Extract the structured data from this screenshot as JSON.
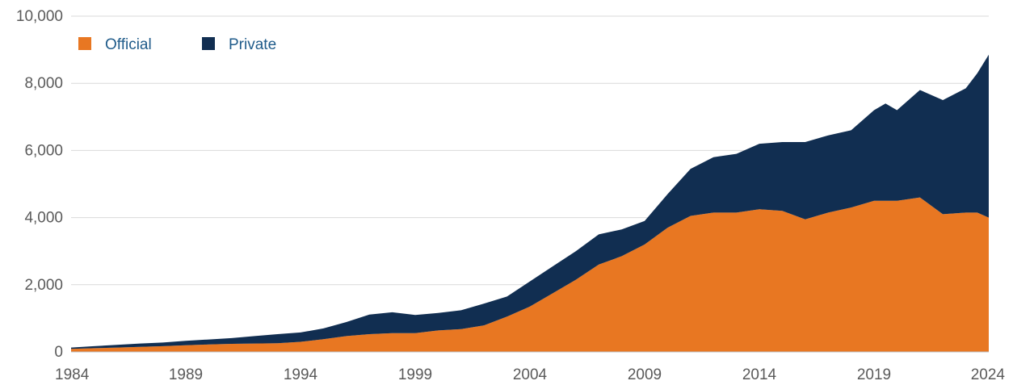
{
  "chart_data": {
    "type": "area",
    "stacked": true,
    "title": "",
    "xlabel": "",
    "ylabel": "",
    "xlim": [
      1984,
      2024
    ],
    "ylim": [
      0,
      10000
    ],
    "grid": "horizontal",
    "legend_position": "top-left",
    "x_ticks": [
      "1984",
      "1989",
      "1994",
      "1999",
      "2004",
      "2009",
      "2014",
      "2019",
      "2024"
    ],
    "y_ticks": [
      "0",
      "2,000",
      "4,000",
      "6,000",
      "8,000",
      "10,000"
    ],
    "x": [
      1984,
      1985,
      1986,
      1987,
      1988,
      1989,
      1990,
      1991,
      1992,
      1993,
      1994,
      1995,
      1996,
      1997,
      1998,
      1999,
      2000,
      2001,
      2002,
      2003,
      2004,
      2005,
      2006,
      2007,
      2008,
      2009,
      2010,
      2011,
      2012,
      2013,
      2014,
      2015,
      2016,
      2017,
      2018,
      2019,
      2019.5,
      2020,
      2021,
      2022,
      2023,
      2023.5,
      2024
    ],
    "series": [
      {
        "name": "Official",
        "color": "#e87722",
        "values": [
          90,
          110,
          130,
          150,
          170,
          200,
          220,
          240,
          250,
          260,
          300,
          380,
          470,
          530,
          560,
          560,
          640,
          680,
          790,
          1050,
          1350,
          1750,
          2150,
          2600,
          2850,
          3200,
          3700,
          4050,
          4150,
          4150,
          4250,
          4200,
          3950,
          4150,
          4300,
          4500,
          4500,
          4500,
          4600,
          4100,
          4150,
          4150,
          4000
        ]
      },
      {
        "name": "Private",
        "color": "#112e51",
        "values": [
          40,
          60,
          80,
          100,
          110,
          130,
          150,
          170,
          220,
          270,
          280,
          320,
          420,
          580,
          620,
          540,
          520,
          560,
          650,
          600,
          750,
          800,
          850,
          900,
          800,
          700,
          1000,
          1400,
          1650,
          1750,
          1950,
          2050,
          2300,
          2300,
          2300,
          2700,
          2900,
          2700,
          3200,
          3400,
          3700,
          4150,
          4850
        ]
      }
    ]
  }
}
